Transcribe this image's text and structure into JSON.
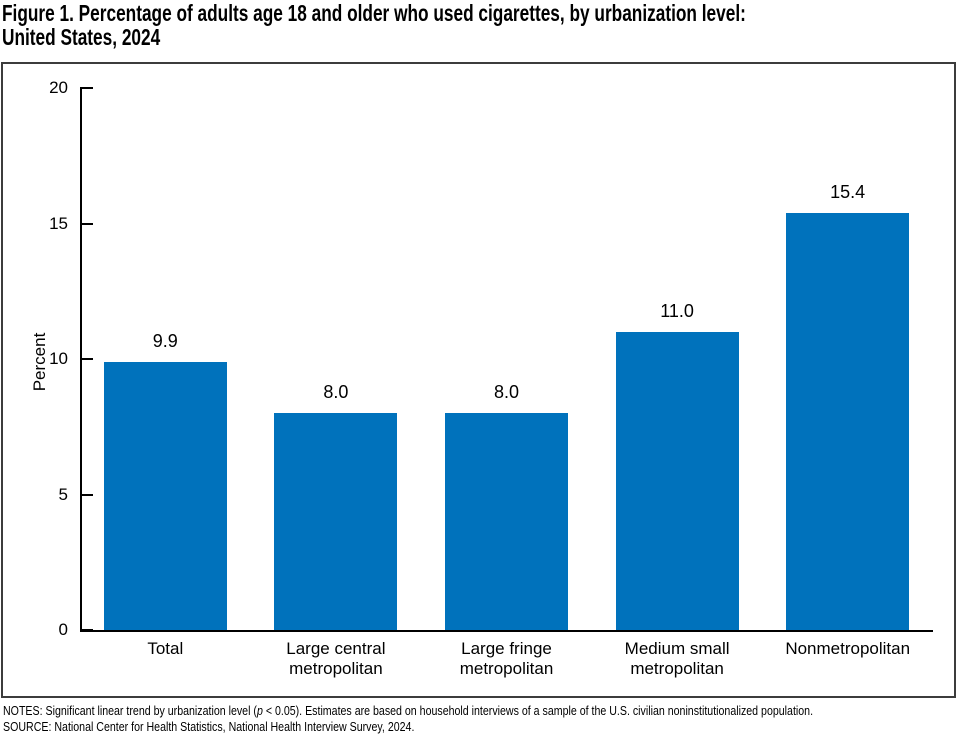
{
  "figure": {
    "title_line1": "Figure 1. Percentage of adults age 18 and older who used cigarettes, by urbanization level:",
    "title_line2": "United States, 2024"
  },
  "notes": {
    "line1_pre": "NOTES: Significant linear trend by urbanization level (",
    "line1_italic": "p",
    "line1_post": " < 0.05). Estimates are based on household interviews of a sample of the U.S. civilian noninstitutionalized population.",
    "line2": "SOURCE: National Center for Health Statistics, National Health Interview Survey, 2024."
  },
  "chart_data": {
    "type": "bar",
    "title": "Figure 1. Percentage of adults age 18 and older who used cigarettes, by urbanization level: United States, 2024",
    "categories": [
      "Total",
      "Large central\nmetropolitan",
      "Large fringe\nmetropolitan",
      "Medium small\nmetropolitan",
      "Nonmetropolitan"
    ],
    "values": [
      9.9,
      8.0,
      8.0,
      11.0,
      15.4
    ],
    "value_labels": [
      "9.9",
      "8.0",
      "8.0",
      "11.0",
      "15.4"
    ],
    "xlabel": "",
    "ylabel": "Percent",
    "ylim": [
      0,
      20
    ],
    "yticks": [
      0,
      5,
      10,
      15,
      20
    ],
    "bar_color": "#0072BC",
    "axis_color": "#000000",
    "grid": false,
    "legend": false
  }
}
